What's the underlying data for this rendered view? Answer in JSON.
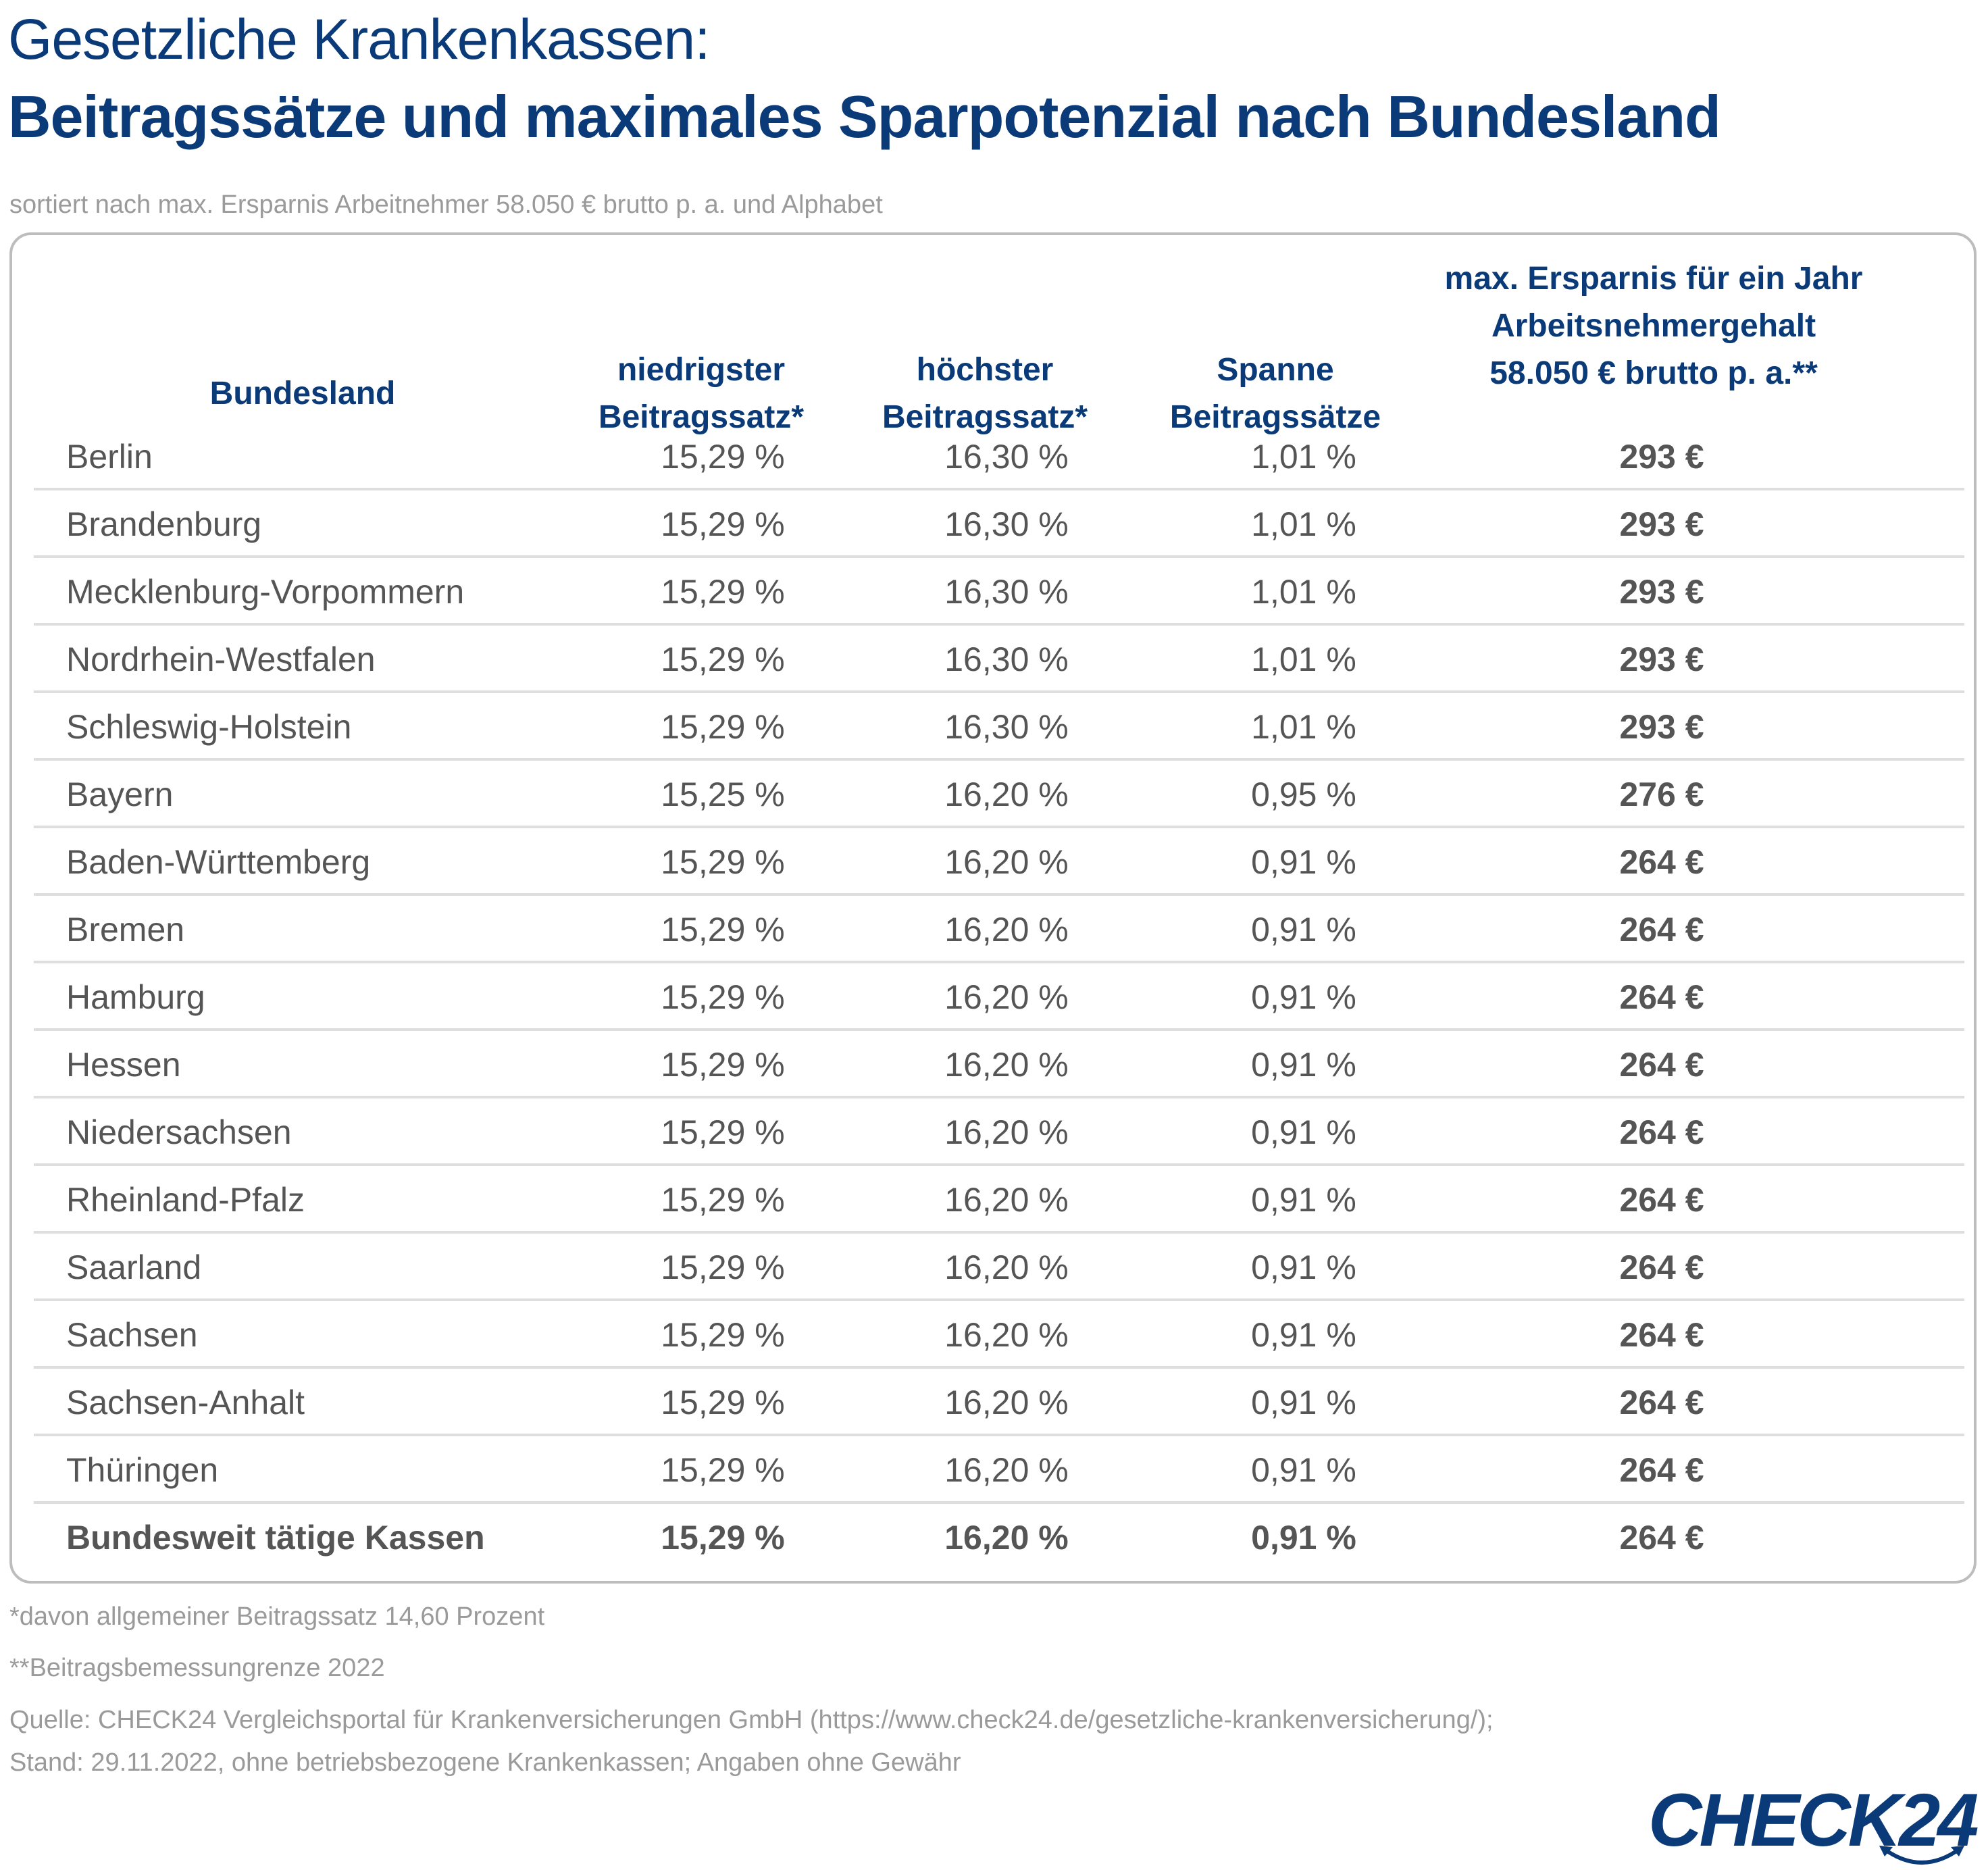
{
  "header": {
    "title_light": "Gesetzliche Krankenkassen:",
    "title_bold": "Beitragssätze und maximales Sparpotenzial nach Bundesland",
    "subtitle": "sortiert nach max. Ersparnis Arbeitnehmer 58.050 € brutto p. a. und Alphabet"
  },
  "table": {
    "columns": [
      {
        "lines": [
          "Bundesland"
        ]
      },
      {
        "lines": [
          "niedrigster",
          "Beitragssatz*"
        ]
      },
      {
        "lines": [
          "höchster",
          "Beitragssatz*"
        ]
      },
      {
        "lines": [
          "Spanne",
          "Beitragssätze"
        ]
      },
      {
        "lines": [
          "max. Ersparnis für ein Jahr",
          "Arbeitsnehmergehalt",
          "58.050 € brutto p. a.**"
        ]
      }
    ],
    "rows": [
      {
        "state": "Berlin",
        "min": "15,29 %",
        "max": "16,30 %",
        "span": "1,01 %",
        "savings": "293 €"
      },
      {
        "state": "Brandenburg",
        "min": "15,29 %",
        "max": "16,30 %",
        "span": "1,01 %",
        "savings": "293 €"
      },
      {
        "state": "Mecklenburg-Vorpommern",
        "min": "15,29 %",
        "max": "16,30 %",
        "span": "1,01 %",
        "savings": "293 €"
      },
      {
        "state": "Nordrhein-Westfalen",
        "min": "15,29 %",
        "max": "16,30 %",
        "span": "1,01 %",
        "savings": "293 €"
      },
      {
        "state": "Schleswig-Holstein",
        "min": "15,29 %",
        "max": "16,30 %",
        "span": "1,01 %",
        "savings": "293 €"
      },
      {
        "state": "Bayern",
        "min": "15,25 %",
        "max": "16,20 %",
        "span": "0,95 %",
        "savings": "276 €"
      },
      {
        "state": "Baden-Württemberg",
        "min": "15,29 %",
        "max": "16,20 %",
        "span": "0,91 %",
        "savings": "264 €"
      },
      {
        "state": "Bremen",
        "min": "15,29 %",
        "max": "16,20 %",
        "span": "0,91 %",
        "savings": "264 €"
      },
      {
        "state": "Hamburg",
        "min": "15,29 %",
        "max": "16,20 %",
        "span": "0,91 %",
        "savings": "264 €"
      },
      {
        "state": "Hessen",
        "min": "15,29 %",
        "max": "16,20 %",
        "span": "0,91 %",
        "savings": "264 €"
      },
      {
        "state": "Niedersachsen",
        "min": "15,29 %",
        "max": "16,20 %",
        "span": "0,91 %",
        "savings": "264 €"
      },
      {
        "state": "Rheinland-Pfalz",
        "min": "15,29 %",
        "max": "16,20 %",
        "span": "0,91 %",
        "savings": "264 €"
      },
      {
        "state": "Saarland",
        "min": "15,29 %",
        "max": "16,20 %",
        "span": "0,91 %",
        "savings": "264 €"
      },
      {
        "state": "Sachsen",
        "min": "15,29 %",
        "max": "16,20 %",
        "span": "0,91 %",
        "savings": "264 €"
      },
      {
        "state": "Sachsen-Anhalt",
        "min": "15,29 %",
        "max": "16,20 %",
        "span": "0,91 %",
        "savings": "264 €"
      },
      {
        "state": "Thüringen",
        "min": "15,29 %",
        "max": "16,20 %",
        "span": "0,91 %",
        "savings": "264 €"
      }
    ],
    "total": {
      "state": "Bundesweit tätige Kassen",
      "min": "15,29 %",
      "max": "16,20 %",
      "span": "0,91 %",
      "savings": "264 €"
    }
  },
  "footnotes": {
    "note1": "*davon allgemeiner Beitragssatz 14,60 Prozent",
    "note2": "**Beitragsbemessungrenze 2022",
    "source_line1": "Quelle: CHECK24 Vergleichsportal für Krankenversicherungen GmbH (https://www.check24.de/gesetzliche-krankenversicherung/);",
    "source_line2": "Stand: 29.11.2022, ohne betriebsbezogene Krankenkassen; Angaben ohne Gewähr"
  },
  "logo": {
    "text": "CHECK24",
    "icon": "check24-arc-arrows-icon"
  },
  "colors": {
    "brand_blue": "#0a3a78",
    "text_gray": "#555555",
    "muted_gray": "#9a9a9a",
    "divider": "#dedede"
  }
}
